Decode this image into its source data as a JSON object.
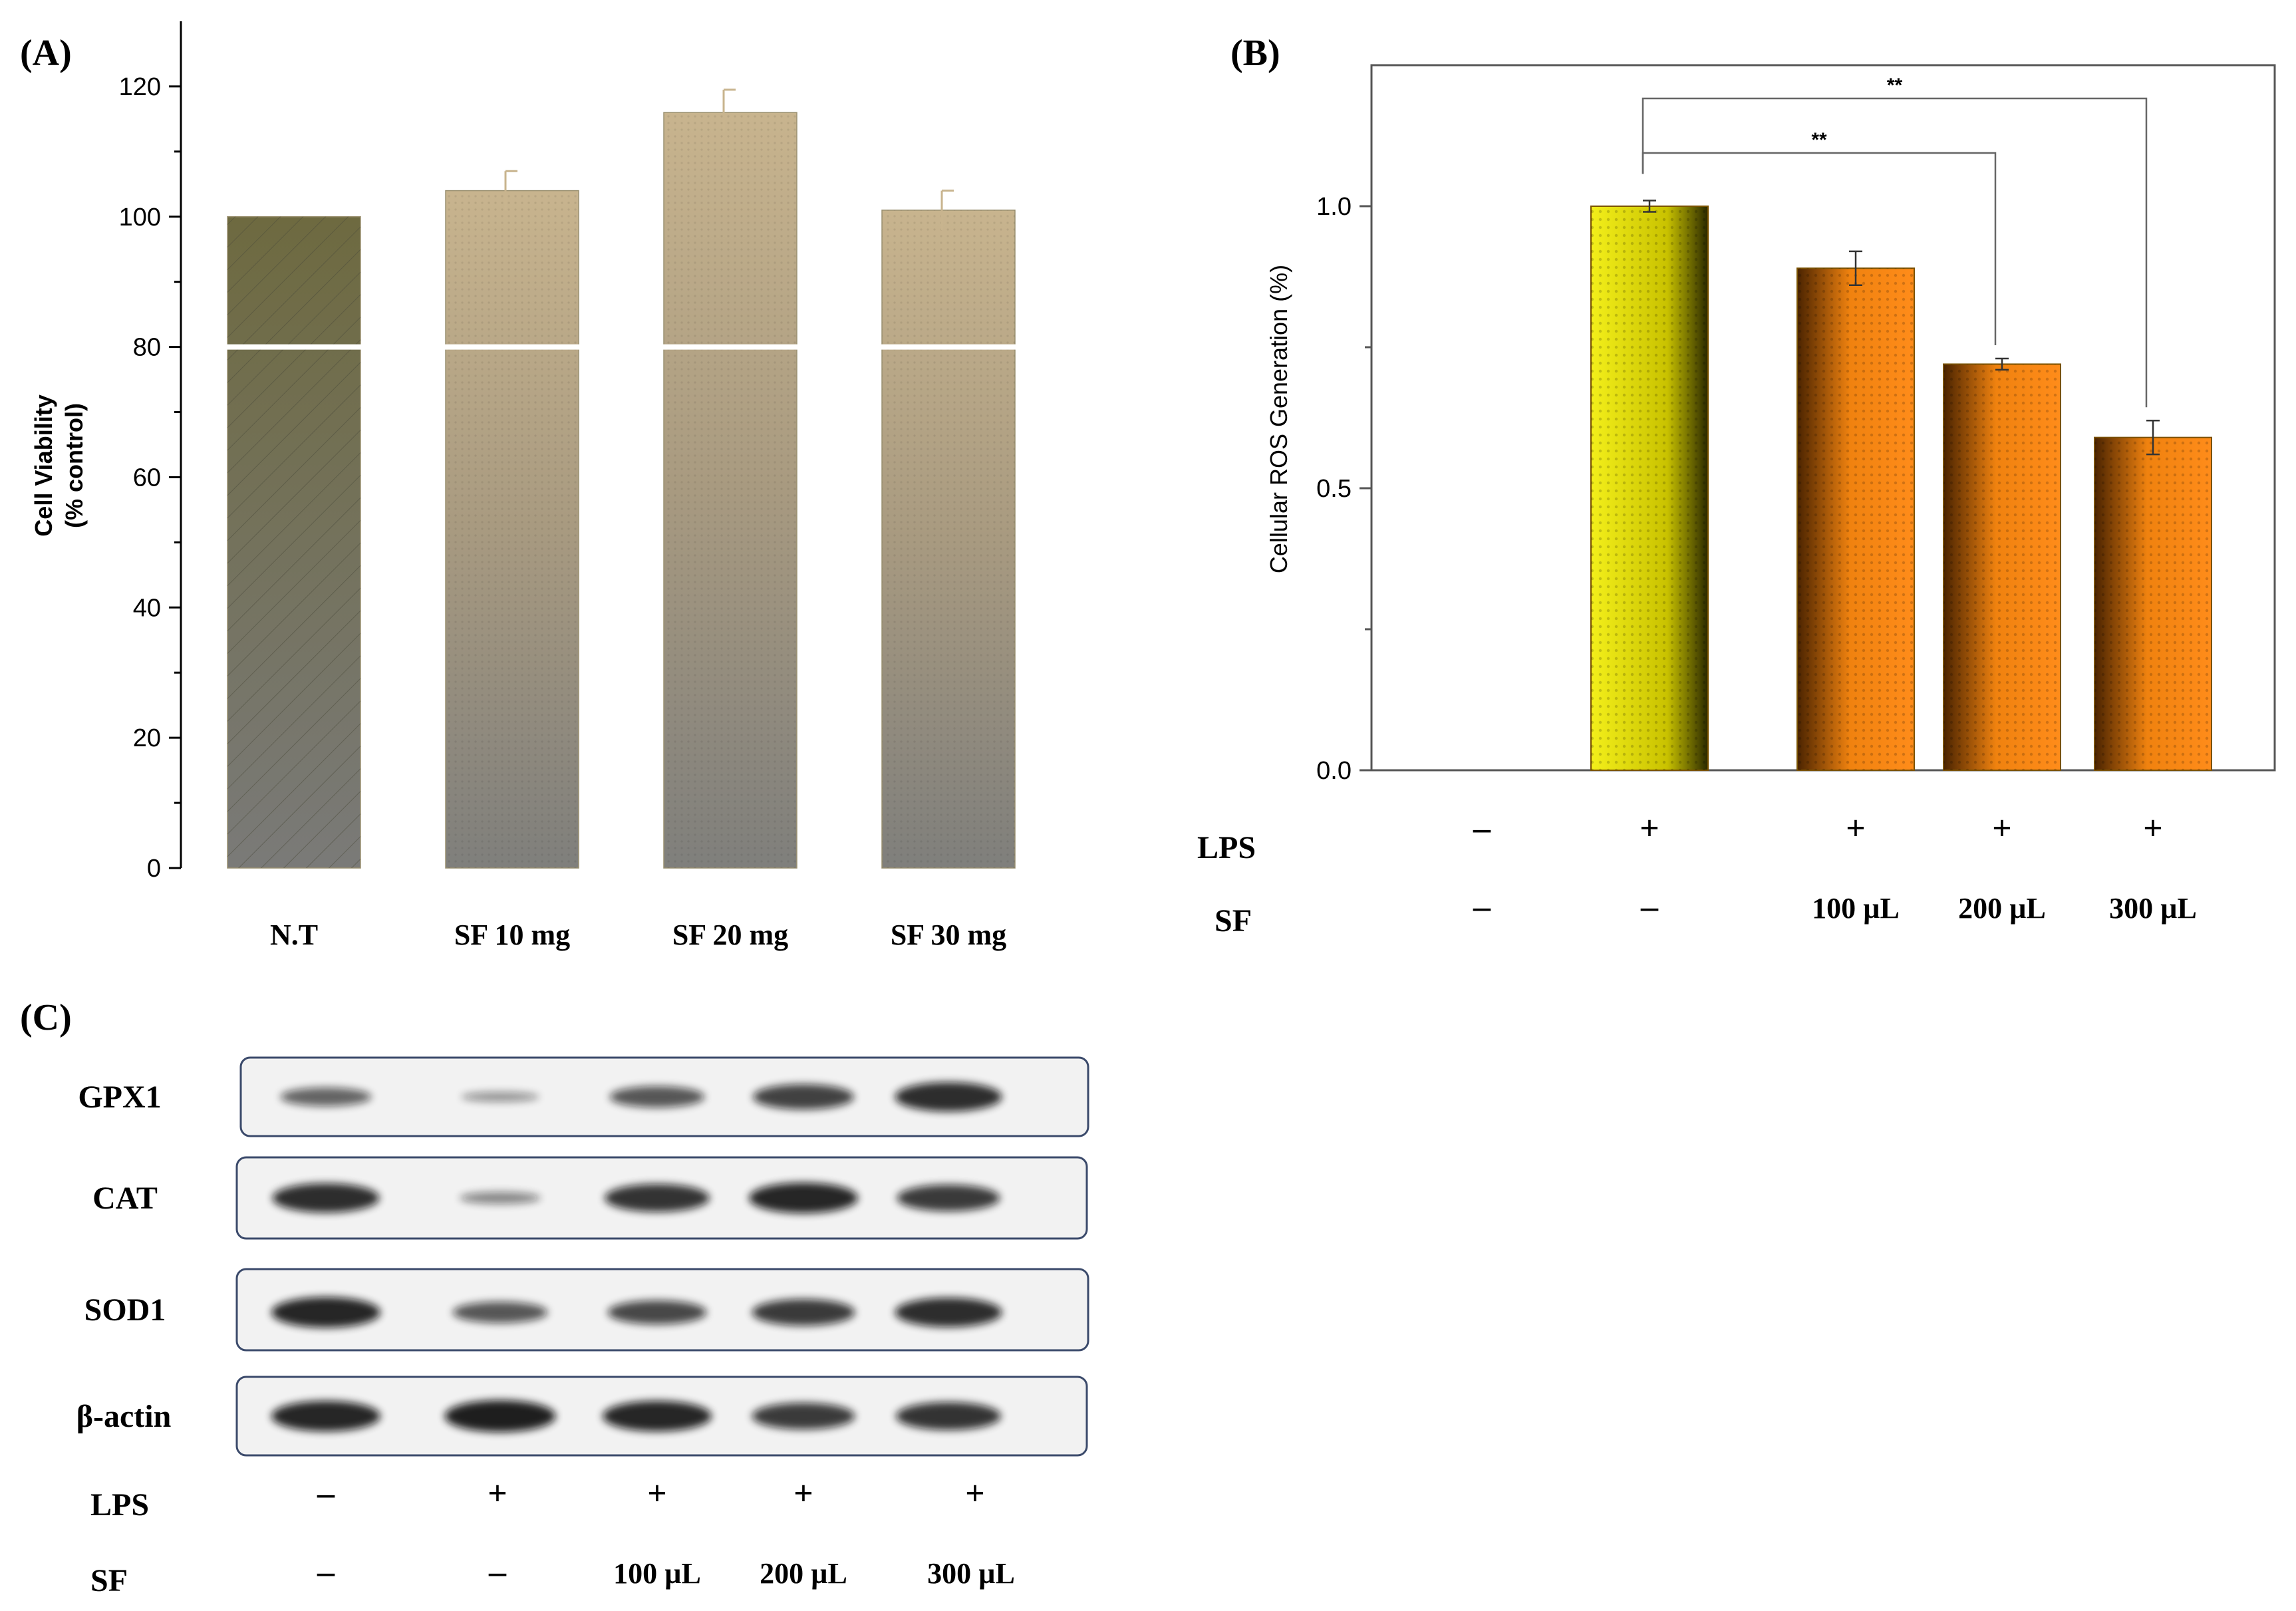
{
  "chart_data": [
    {
      "panel": "(A)",
      "type": "bar",
      "title": "",
      "xlabel": "",
      "ylabel_line1": "Cell Viability",
      "ylabel_line2": "(% control)",
      "categories": [
        "N.T",
        "SF 10 mg",
        "SF 20 mg",
        "SF 30 mg"
      ],
      "values": [
        100,
        104,
        116,
        101
      ],
      "errors": [
        0,
        3,
        3.5,
        3
      ],
      "ylim": [
        0,
        130
      ],
      "yticks": [
        0,
        20,
        40,
        60,
        80,
        100,
        120
      ],
      "colors": [
        "#6b6b45",
        "#b8a37c",
        "#b8a37c",
        "#b8a37c"
      ]
    },
    {
      "panel": "(B)",
      "type": "bar",
      "title": "",
      "ylabel": "Cellular ROS Generation (%)",
      "categories": [
        "-/-",
        "+/-",
        "+/100 µL",
        "+/200 µL",
        "+/300 µL"
      ],
      "values": [
        0,
        1.0,
        0.89,
        0.72,
        0.59
      ],
      "errors": [
        0,
        0.01,
        0.03,
        0.01,
        0.03
      ],
      "ylim": [
        0,
        1.25
      ],
      "yticks": [
        "0.0",
        "0.5",
        "1.0"
      ],
      "colors": [
        "#ffffff",
        "#d9d400",
        "#ff8c1a",
        "#ff8c1a",
        "#ff8c1a"
      ],
      "row_labels": [
        "LPS",
        "SF"
      ],
      "lps_row": [
        "–",
        "+",
        "+",
        "+",
        "+"
      ],
      "sf_row": [
        "–",
        "–",
        "100 µL",
        "200 µL",
        "300 µL"
      ],
      "significance": [
        {
          "from": 1,
          "to": 4,
          "label": "**"
        },
        {
          "from": 1,
          "to": 3,
          "label": "**"
        }
      ]
    },
    {
      "panel": "(C)",
      "type": "table",
      "proteins": [
        "GPX1",
        "CAT",
        "SOD1",
        "β-actin"
      ],
      "band_intensity": [
        [
          0.45,
          0.12,
          0.55,
          0.7,
          0.85
        ],
        [
          0.85,
          0.2,
          0.8,
          0.9,
          0.75
        ],
        [
          0.9,
          0.55,
          0.65,
          0.75,
          0.85
        ],
        [
          0.9,
          0.95,
          0.9,
          0.75,
          0.8
        ]
      ],
      "row_labels": [
        "LPS",
        "SF"
      ],
      "lps_row": [
        "–",
        "+",
        "+",
        "+",
        "+"
      ],
      "sf_row": [
        "–",
        "–",
        "100 µL",
        "200 µL",
        "300 µL"
      ]
    }
  ]
}
